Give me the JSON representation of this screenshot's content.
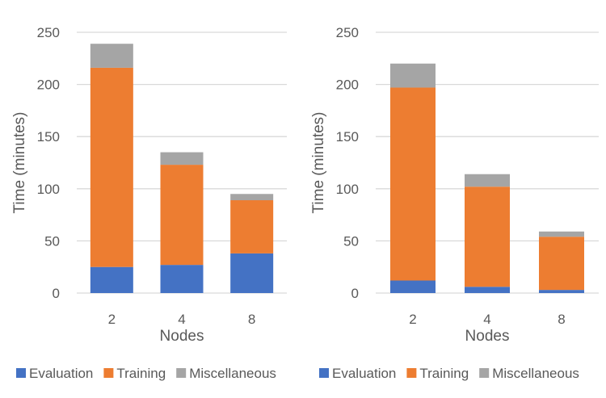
{
  "chart_data": [
    {
      "type": "bar",
      "stacked": true,
      "title": "",
      "xlabel": "Nodes",
      "ylabel": "Time (minutes)",
      "ylim": [
        0,
        250
      ],
      "yticks": [
        0,
        50,
        100,
        150,
        200,
        250
      ],
      "grid": true,
      "legend": "bottom",
      "categories": [
        "2",
        "4",
        "8"
      ],
      "series": [
        {
          "name": "Evaluation",
          "color": "#4472C4",
          "values": [
            25,
            27,
            38
          ]
        },
        {
          "name": "Training",
          "color": "#ED7D31",
          "values": [
            191,
            96,
            51
          ]
        },
        {
          "name": "Miscellaneous",
          "color": "#A5A5A5",
          "values": [
            23,
            12,
            6
          ]
        }
      ]
    },
    {
      "type": "bar",
      "stacked": true,
      "title": "",
      "xlabel": "Nodes",
      "ylabel": "Time (minutes)",
      "ylim": [
        0,
        250
      ],
      "yticks": [
        0,
        50,
        100,
        150,
        200,
        250
      ],
      "grid": true,
      "legend": "bottom",
      "categories": [
        "2",
        "4",
        "8"
      ],
      "series": [
        {
          "name": "Evaluation",
          "color": "#4472C4",
          "values": [
            12,
            6,
            3
          ]
        },
        {
          "name": "Training",
          "color": "#ED7D31",
          "values": [
            185,
            96,
            51
          ]
        },
        {
          "name": "Miscellaneous",
          "color": "#A5A5A5",
          "values": [
            23,
            12,
            5
          ]
        }
      ]
    }
  ]
}
